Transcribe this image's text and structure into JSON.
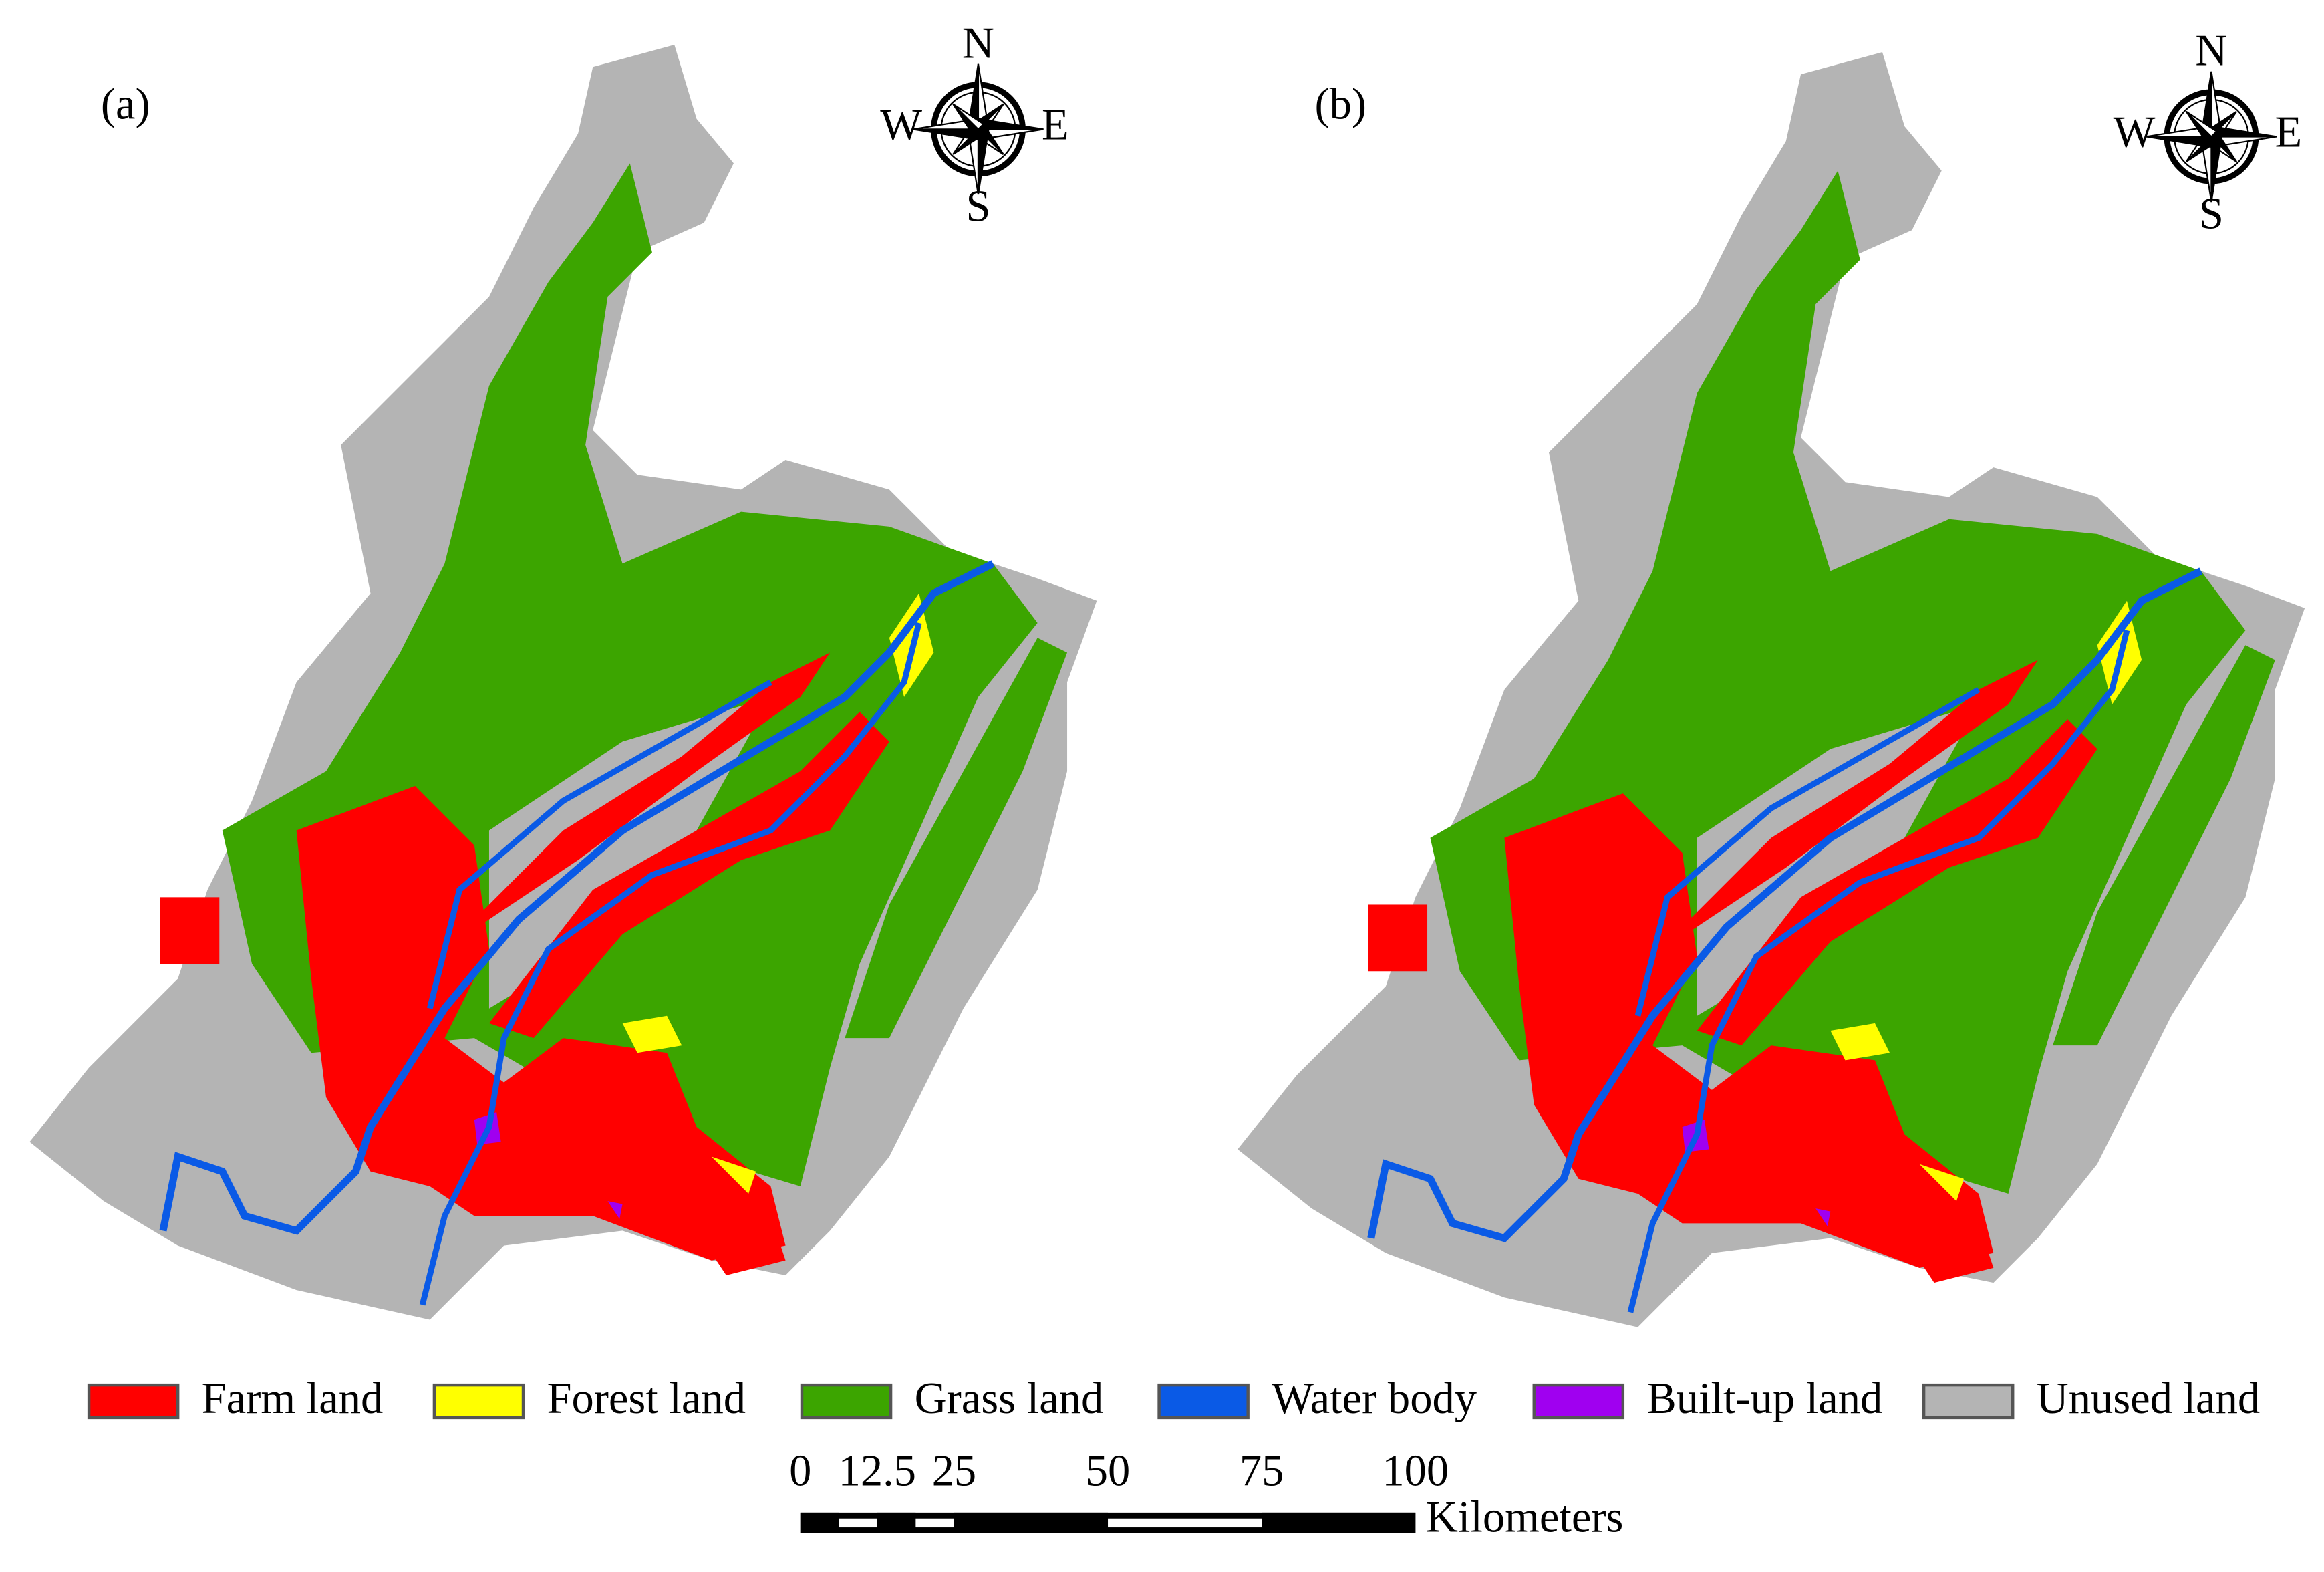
{
  "panels": [
    {
      "label": "(a)",
      "compass": {
        "north": "N",
        "east": "E",
        "south": "S",
        "west": "W"
      }
    },
    {
      "label": "(b)",
      "compass": {
        "north": "N",
        "east": "E",
        "south": "S",
        "west": "W"
      }
    }
  ],
  "legend": [
    {
      "label": "Farm land",
      "color": "#ff0000"
    },
    {
      "label": "Forest land",
      "color": "#ffff00"
    },
    {
      "label": "Grass land",
      "color": "#3ca500"
    },
    {
      "label": "Water body",
      "color": "#0a5ae6"
    },
    {
      "label": "Built-up land",
      "color": "#a000f0"
    },
    {
      "label": "Unused land",
      "color": "#b4b4b4"
    }
  ],
  "scale_bar": {
    "ticks": [
      0,
      12.5,
      25,
      50,
      75,
      100
    ],
    "unit": "Kilometers"
  }
}
